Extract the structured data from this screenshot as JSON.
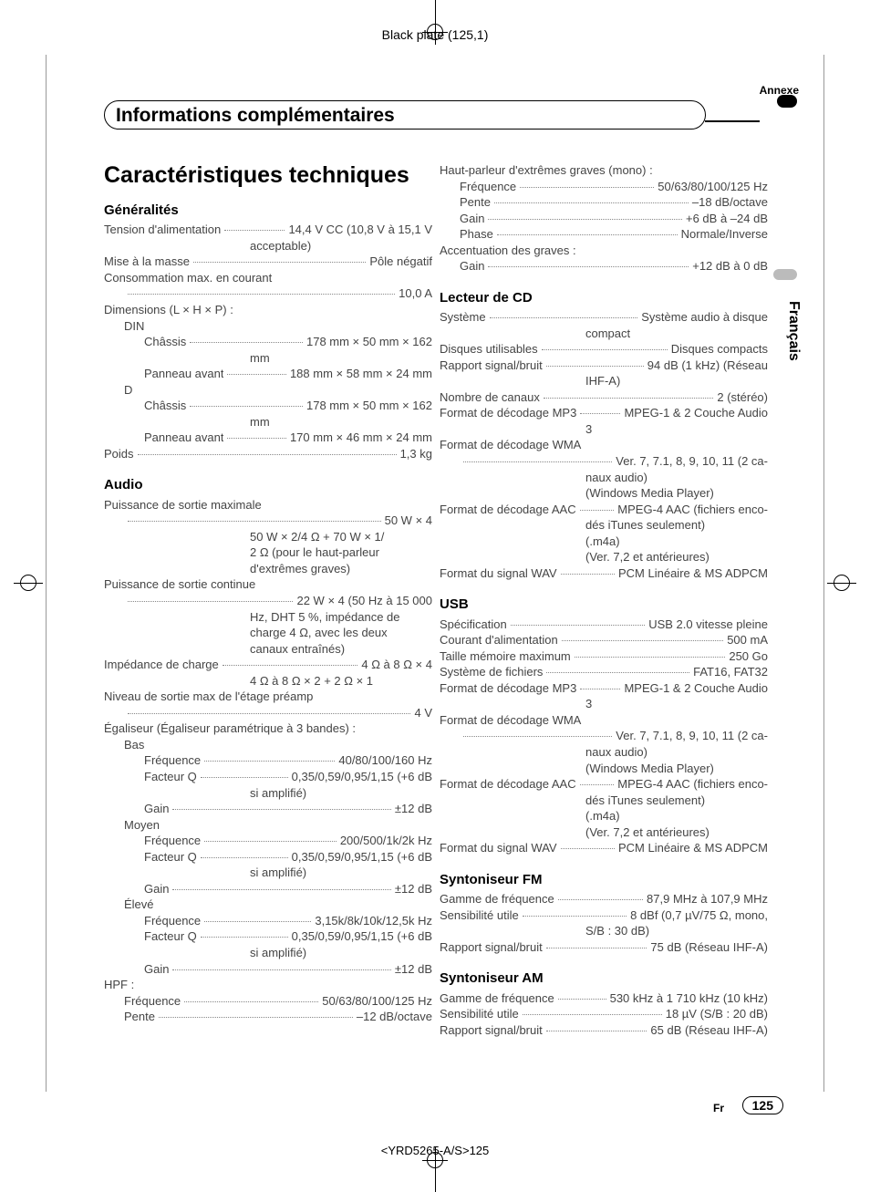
{
  "header_plate": "Black plate (125,1)",
  "annexe": "Annexe",
  "title_band": "Informations complémentaires",
  "francais": "Français",
  "main_title": "Caractéristiques techniques",
  "footer_fr": "Fr",
  "footer_num": "125",
  "footer_code": "<YRD5265-A/S>125",
  "left": {
    "generalites": {
      "title": "Généralités",
      "items": [
        {
          "l": "Tension d'alimentation",
          "v": "14,4 V CC (10,8 V à 15,1 V"
        },
        {
          "cont": "acceptable)"
        },
        {
          "l": "Mise à la masse",
          "v": "Pôle négatif"
        },
        {
          "plain": "Consommation max. en courant"
        },
        {
          "l": "",
          "v": "10,0 A",
          "i": 1
        },
        {
          "plain": "Dimensions (L × H × P) :"
        },
        {
          "plain": "DIN",
          "i": 1
        },
        {
          "l": "Châssis",
          "v": "178 mm × 50 mm × 162",
          "i": 2
        },
        {
          "cont": "mm"
        },
        {
          "l": "Panneau avant",
          "v": "188 mm × 58 mm × 24 mm",
          "i": 2
        },
        {
          "plain": "D",
          "i": 1
        },
        {
          "l": "Châssis",
          "v": "178 mm × 50 mm × 162",
          "i": 2
        },
        {
          "cont": "mm"
        },
        {
          "l": "Panneau avant",
          "v": "170 mm × 46 mm × 24 mm",
          "i": 2
        },
        {
          "l": "Poids",
          "v": "1,3 kg"
        }
      ]
    },
    "audio": {
      "title": "Audio",
      "items": [
        {
          "plain": "Puissance de sortie maximale"
        },
        {
          "l": "",
          "v": "50 W × 4",
          "i": 1
        },
        {
          "cont": "50 W × 2/4 Ω + 70 W × 1/"
        },
        {
          "cont": "2 Ω (pour le haut-parleur"
        },
        {
          "cont": "d'extrêmes graves)"
        },
        {
          "plain": "Puissance de sortie continue"
        },
        {
          "l": "",
          "v": "22 W × 4 (50 Hz à 15 000",
          "i": 1
        },
        {
          "cont": "Hz, DHT 5 %, impédance de"
        },
        {
          "cont": "charge 4 Ω, avec les deux"
        },
        {
          "cont": "canaux entraînés)"
        },
        {
          "l": "Impédance de charge",
          "v": "4 Ω à 8 Ω × 4"
        },
        {
          "cont": "4 Ω à 8 Ω × 2 + 2 Ω × 1"
        },
        {
          "plain": "Niveau de sortie max de l'étage préamp"
        },
        {
          "l": "",
          "v": "4 V",
          "i": 1
        },
        {
          "plain": "Égaliseur (Égaliseur paramétrique à 3 bandes) :"
        },
        {
          "plain": "Bas",
          "i": 1
        },
        {
          "l": "Fréquence",
          "v": "40/80/100/160 Hz",
          "i": 2
        },
        {
          "l": "Facteur Q",
          "v": "0,35/0,59/0,95/1,15 (+6 dB",
          "i": 2
        },
        {
          "cont": "si amplifié)"
        },
        {
          "l": "Gain",
          "v": "±12 dB",
          "i": 2
        },
        {
          "plain": "Moyen",
          "i": 1
        },
        {
          "l": "Fréquence",
          "v": "200/500/1k/2k Hz",
          "i": 2
        },
        {
          "l": "Facteur Q",
          "v": "0,35/0,59/0,95/1,15 (+6 dB",
          "i": 2
        },
        {
          "cont": "si amplifié)"
        },
        {
          "l": "Gain",
          "v": "±12 dB",
          "i": 2
        },
        {
          "plain": "Élevé",
          "i": 1
        },
        {
          "l": "Fréquence",
          "v": "3,15k/8k/10k/12,5k Hz",
          "i": 2
        },
        {
          "l": "Facteur Q",
          "v": "0,35/0,59/0,95/1,15 (+6 dB",
          "i": 2
        },
        {
          "cont": "si amplifié)"
        },
        {
          "l": "Gain",
          "v": "±12 dB",
          "i": 2
        },
        {
          "plain": "HPF :"
        },
        {
          "l": "Fréquence",
          "v": "50/63/80/100/125 Hz",
          "i": 1
        },
        {
          "l": "Pente",
          "v": "–12 dB/octave",
          "i": 1
        }
      ]
    }
  },
  "right": {
    "speaker": {
      "items": [
        {
          "plain": "Haut-parleur d'extrêmes graves (mono) :"
        },
        {
          "l": "Fréquence",
          "v": "50/63/80/100/125 Hz",
          "i": 1
        },
        {
          "l": "Pente",
          "v": "–18 dB/octave",
          "i": 1
        },
        {
          "l": "Gain",
          "v": "+6 dB à –24 dB",
          "i": 1
        },
        {
          "l": "Phase",
          "v": "Normale/Inverse",
          "i": 1
        },
        {
          "plain": "Accentuation des graves :"
        },
        {
          "l": "Gain",
          "v": "+12 dB à 0 dB",
          "i": 1
        }
      ]
    },
    "cd": {
      "title": "Lecteur de CD",
      "items": [
        {
          "l": "Système",
          "v": "Système audio à disque"
        },
        {
          "cont": "compact"
        },
        {
          "l": "Disques utilisables",
          "v": "Disques compacts"
        },
        {
          "l": "Rapport signal/bruit",
          "v": "94 dB (1 kHz) (Réseau"
        },
        {
          "cont": "IHF-A)"
        },
        {
          "l": "Nombre de canaux",
          "v": "2 (stéréo)"
        },
        {
          "l": "Format de décodage MP3",
          "v": "MPEG-1 & 2 Couche Audio"
        },
        {
          "cont": "3"
        },
        {
          "plain": "Format de décodage WMA"
        },
        {
          "l": "",
          "v": "Ver. 7, 7.1, 8, 9, 10, 11 (2 ca-",
          "i": 1
        },
        {
          "cont": "naux audio)"
        },
        {
          "cont": "(Windows Media Player)"
        },
        {
          "l": "Format de décodage AAC",
          "v": "MPEG-4 AAC (fichiers enco-"
        },
        {
          "cont": "dés iTunes seulement)"
        },
        {
          "cont": "(.m4a)"
        },
        {
          "cont": "(Ver. 7,2 et antérieures)"
        },
        {
          "l": "Format du signal WAV",
          "v": "PCM Linéaire & MS ADPCM"
        }
      ]
    },
    "usb": {
      "title": "USB",
      "items": [
        {
          "l": "Spécification",
          "v": "USB 2.0 vitesse pleine"
        },
        {
          "l": "Courant d'alimentation",
          "v": "500 mA"
        },
        {
          "l": "Taille mémoire maximum",
          "v": "250 Go"
        },
        {
          "l": "Système de fichiers",
          "v": "FAT16, FAT32"
        },
        {
          "l": "Format de décodage MP3",
          "v": "MPEG-1 & 2 Couche Audio"
        },
        {
          "cont": "3"
        },
        {
          "plain": "Format de décodage WMA"
        },
        {
          "l": "",
          "v": "Ver. 7, 7.1, 8, 9, 10, 11 (2 ca-",
          "i": 1
        },
        {
          "cont": "naux audio)"
        },
        {
          "cont": "(Windows Media Player)"
        },
        {
          "l": "Format de décodage AAC",
          "v": "MPEG-4 AAC (fichiers enco-"
        },
        {
          "cont": "dés iTunes seulement)"
        },
        {
          "cont": "(.m4a)"
        },
        {
          "cont": "(Ver. 7,2 et antérieures)"
        },
        {
          "l": "Format du signal WAV",
          "v": "PCM Linéaire & MS ADPCM"
        }
      ]
    },
    "fm": {
      "title": "Syntoniseur FM",
      "items": [
        {
          "l": "Gamme de fréquence",
          "v": "87,9 MHz à 107,9 MHz"
        },
        {
          "l": "Sensibilité utile",
          "v": "8 dBf (0,7 µV/75 Ω, mono,"
        },
        {
          "cont": "S/B : 30 dB)"
        },
        {
          "l": "Rapport signal/bruit",
          "v": "75 dB (Réseau IHF-A)"
        }
      ]
    },
    "am": {
      "title": "Syntoniseur AM",
      "items": [
        {
          "l": "Gamme de fréquence",
          "v": "530 kHz à 1 710 kHz (10 kHz)"
        },
        {
          "l": "Sensibilité utile",
          "v": "18 µV (S/B : 20 dB)"
        },
        {
          "l": "Rapport signal/bruit",
          "v": "65 dB (Réseau IHF-A)"
        }
      ]
    }
  }
}
